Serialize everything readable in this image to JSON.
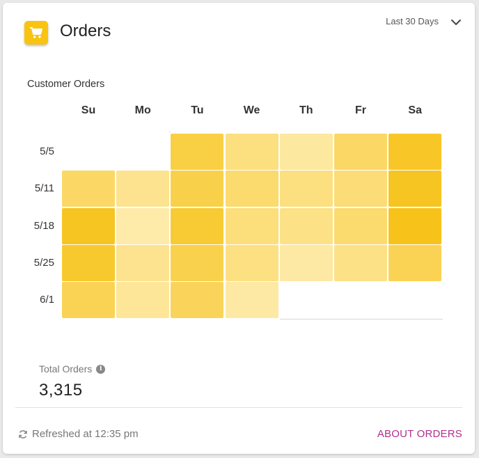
{
  "header": {
    "title": "Orders",
    "icon": "shopping-cart-icon",
    "range_label": "Last 30 Days"
  },
  "chart_data": {
    "type": "heatmap",
    "title": "Customer Orders",
    "columns": [
      "Su",
      "Mo",
      "Tu",
      "We",
      "Th",
      "Fr",
      "Sa"
    ],
    "rows": [
      "5/5",
      "5/11",
      "5/18",
      "5/25",
      "6/1"
    ],
    "intensity": [
      [
        null,
        null,
        0.75,
        0.4,
        0.2,
        0.55,
        0.92
      ],
      [
        0.55,
        0.3,
        0.72,
        0.5,
        0.4,
        0.45,
        0.95
      ],
      [
        0.95,
        0.15,
        0.85,
        0.42,
        0.35,
        0.5,
        1.0
      ],
      [
        0.88,
        0.3,
        0.7,
        0.38,
        0.18,
        0.35,
        0.65
      ],
      [
        0.65,
        0.25,
        0.62,
        0.18,
        null,
        null,
        null
      ]
    ],
    "color_scale": [
      "#fff1c2",
      "#f7c31a"
    ],
    "grid": false,
    "legend": "none"
  },
  "summary": {
    "total_label": "Total Orders",
    "total_value": "3,315"
  },
  "footer": {
    "refreshed_text": "Refreshed at 12:35 pm",
    "about_label": "ABOUT ORDERS"
  },
  "colors": {
    "accent": "#f8c411",
    "link": "#b0308e"
  }
}
